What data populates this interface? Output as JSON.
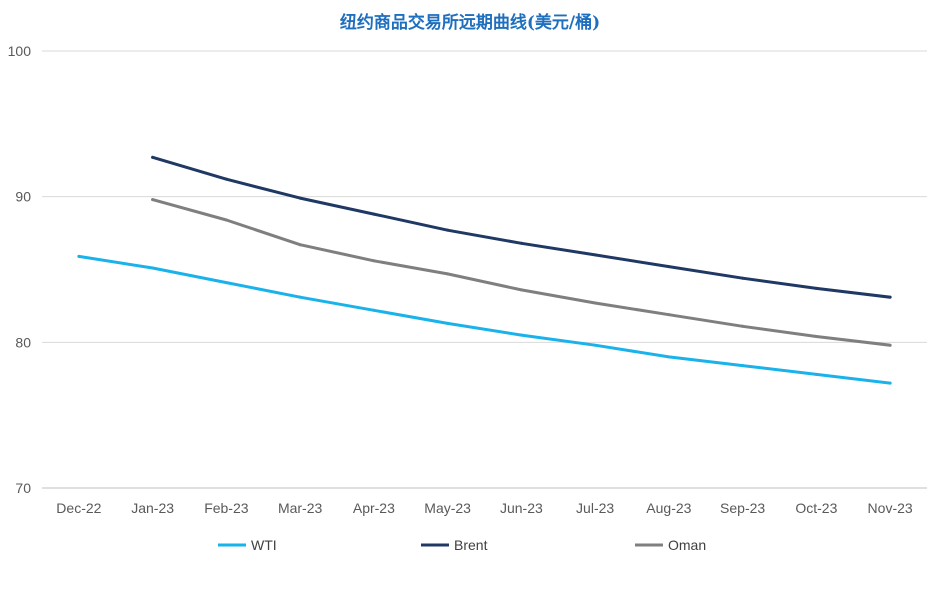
{
  "chart_data": {
    "type": "line",
    "title": "纽约商品交易所远期曲线(美元/桶)",
    "xlabel": "",
    "ylabel": "",
    "categories": [
      "Dec-22",
      "Jan-23",
      "Feb-23",
      "Mar-23",
      "Apr-23",
      "May-23",
      "Jun-23",
      "Jul-23",
      "Aug-23",
      "Sep-23",
      "Oct-23",
      "Nov-23"
    ],
    "ylim": [
      70,
      100
    ],
    "yticks": [
      70,
      80,
      90,
      100
    ],
    "grid": "horizontal",
    "legend_position": "bottom",
    "series": [
      {
        "name": "WTI",
        "color": "#1ab2ea",
        "values": [
          85.9,
          85.1,
          84.1,
          83.1,
          82.2,
          81.3,
          80.5,
          79.8,
          79.0,
          78.4,
          77.8,
          77.2
        ]
      },
      {
        "name": "Brent",
        "color": "#203864",
        "values": [
          null,
          92.7,
          91.2,
          89.9,
          88.8,
          87.7,
          86.8,
          86.0,
          85.2,
          84.4,
          83.7,
          83.1
        ]
      },
      {
        "name": "Oman",
        "color": "#7f7f7f",
        "values": [
          null,
          89.8,
          88.4,
          86.7,
          85.6,
          84.7,
          83.6,
          82.7,
          81.9,
          81.1,
          80.4,
          79.8
        ]
      }
    ]
  }
}
